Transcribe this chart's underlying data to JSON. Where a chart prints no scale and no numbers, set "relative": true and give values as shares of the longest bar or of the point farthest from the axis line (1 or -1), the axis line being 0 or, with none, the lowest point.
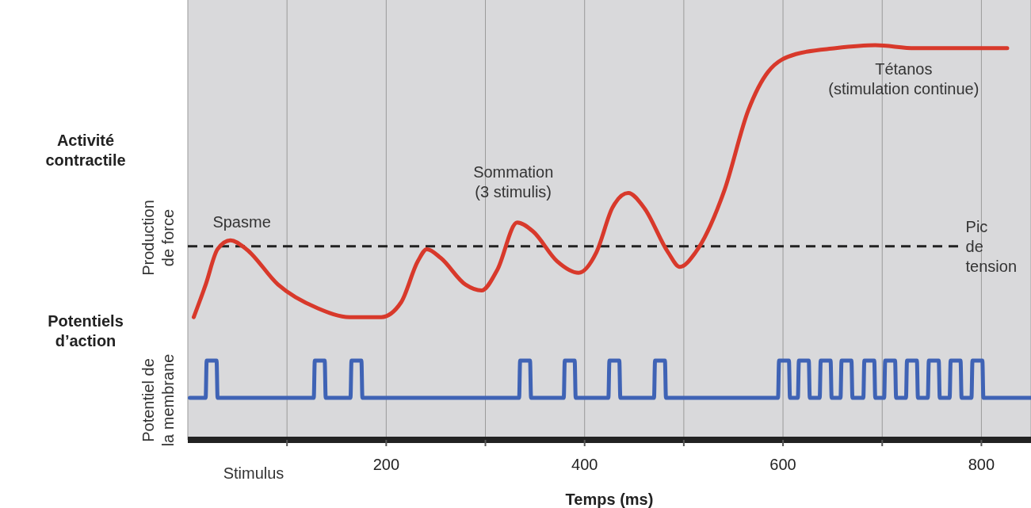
{
  "chart_data": [
    {
      "type": "line",
      "title": "Activité contractile",
      "ylabel": "Production de force",
      "relative": true,
      "xlim": [
        0,
        850
      ],
      "xticks": [
        {
          "value": 100,
          "label": null
        },
        {
          "value": 200,
          "label": null
        },
        {
          "value": 300,
          "label": null
        },
        {
          "value": 400,
          "label": null
        },
        {
          "value": 500,
          "label": null
        },
        {
          "value": 600,
          "label": null
        },
        {
          "value": 700,
          "label": null
        },
        {
          "value": 800,
          "label": null
        }
      ],
      "tick_labels": false,
      "grid": "x",
      "series": [
        {
          "color": "#d8392b",
          "x": [
            6,
            18,
            30,
            43,
            59,
            91,
            131,
            163,
            195,
            215,
            232,
            241,
            255,
            280,
            296,
            312,
            332,
            348,
            372,
            394,
            412,
            428,
            444,
            460,
            484,
            496,
            512,
            541,
            565,
            585,
            613,
            653,
            693,
            733,
            773,
            826
          ],
          "values": [
            0.08,
            0.19,
            0.31,
            0.34,
            0.31,
            0.19,
            0.11,
            0.08,
            0.08,
            0.13,
            0.27,
            0.31,
            0.28,
            0.19,
            0.17,
            0.24,
            0.4,
            0.37,
            0.27,
            0.23,
            0.3,
            0.45,
            0.5,
            0.45,
            0.3,
            0.25,
            0.3,
            0.51,
            0.78,
            0.91,
            0.97,
            0.99,
            1,
            0.99,
            0.99,
            0.99
          ]
        }
      ],
      "ref_lines": [
        {
          "axis": "y",
          "value": 0.32,
          "label": "Pic de tension",
          "color": "#222222",
          "line_style": "dashed"
        }
      ],
      "annotations": [
        "Spasme",
        "Sommation (3 stimulis)",
        "Tétanos (stimulation continue)"
      ]
    },
    {
      "type": "line",
      "title": "Potentiels d’action",
      "ylabel": "Potentiel de la membrane",
      "xlabel": "Temps (ms)",
      "relative": true,
      "xlim": [
        0,
        850
      ],
      "xticks": [
        {
          "value": 100,
          "label": null
        },
        200,
        {
          "value": 300,
          "label": null
        },
        400,
        {
          "value": 500,
          "label": null
        },
        600,
        {
          "value": 700,
          "label": null
        },
        800
      ],
      "tick_labels": "x",
      "grid": "x",
      "series": [
        {
          "color": "#3f63b5",
          "x": [
            2,
            18,
            19,
            29,
            30,
            127,
            128,
            138,
            139,
            164,
            165,
            175,
            176,
            334,
            335,
            345,
            346,
            379,
            380,
            390,
            391,
            424,
            425,
            435,
            436,
            470,
            471,
            481,
            482,
            595,
            596,
            606,
            607,
            615,
            616,
            626,
            627,
            637,
            638,
            648,
            649,
            658,
            659,
            669,
            670,
            681,
            682,
            692,
            693,
            702,
            703,
            713,
            714,
            724,
            725,
            735,
            736,
            746,
            747,
            757,
            758,
            768,
            769,
            779,
            780,
            790,
            791,
            801,
            802,
            850
          ],
          "values": [
            0.53,
            0.53,
            1,
            1,
            0.53,
            0.53,
            1,
            1,
            0.53,
            0.53,
            1,
            1,
            0.53,
            0.53,
            1,
            1,
            0.53,
            0.53,
            1,
            1,
            0.53,
            0.53,
            1,
            1,
            0.53,
            0.53,
            1,
            1,
            0.53,
            0.53,
            1,
            1,
            0.53,
            0.53,
            1,
            1,
            0.53,
            0.53,
            1,
            1,
            0.53,
            0.53,
            1,
            1,
            0.53,
            0.53,
            1,
            1,
            0.53,
            0.53,
            1,
            1,
            0.53,
            0.53,
            1,
            1,
            0.53,
            0.53,
            1,
            1,
            0.53,
            0.53,
            1,
            1,
            0.53,
            0.53,
            1,
            1,
            0.53,
            0.53
          ]
        }
      ],
      "annotations": [
        "Stimulus"
      ]
    }
  ]
}
